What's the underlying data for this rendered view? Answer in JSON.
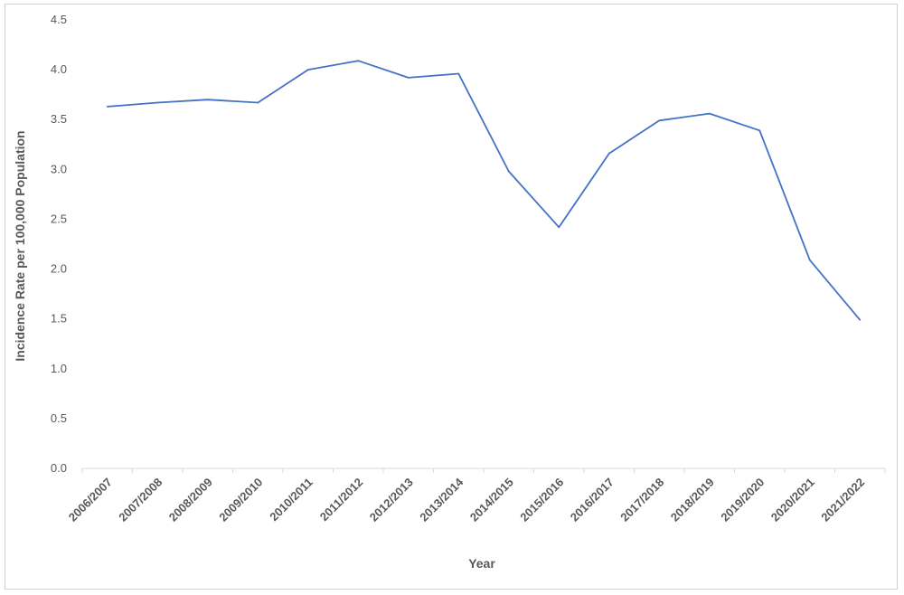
{
  "chart_data": {
    "type": "line",
    "categories": [
      "2006/2007",
      "2007/2008",
      "2008/2009",
      "2009/2010",
      "2010/2011",
      "2011/2012",
      "2012/2013",
      "2013/2014",
      "2014/2015",
      "2015/2016",
      "2016/2017",
      "2017/2018",
      "2018/2019",
      "2019/2020",
      "2020/2021",
      "2021/2022"
    ],
    "series": [
      {
        "values": [
          3.63,
          3.67,
          3.7,
          3.67,
          4.0,
          4.09,
          3.92,
          3.96,
          2.98,
          2.42,
          3.16,
          3.49,
          3.56,
          3.39,
          2.09,
          1.49
        ]
      }
    ],
    "xlabel": "Year",
    "ylabel": "Incidence Rate per 100,000 Population",
    "ylim": [
      0,
      4.5
    ],
    "yticks": [
      "0.0",
      "0.5",
      "1.0",
      "1.5",
      "2.0",
      "2.5",
      "3.0",
      "3.5",
      "4.0",
      "4.5"
    ],
    "grid": false,
    "line_color": "#4472c4",
    "axis_color": "#d9d9d9"
  }
}
